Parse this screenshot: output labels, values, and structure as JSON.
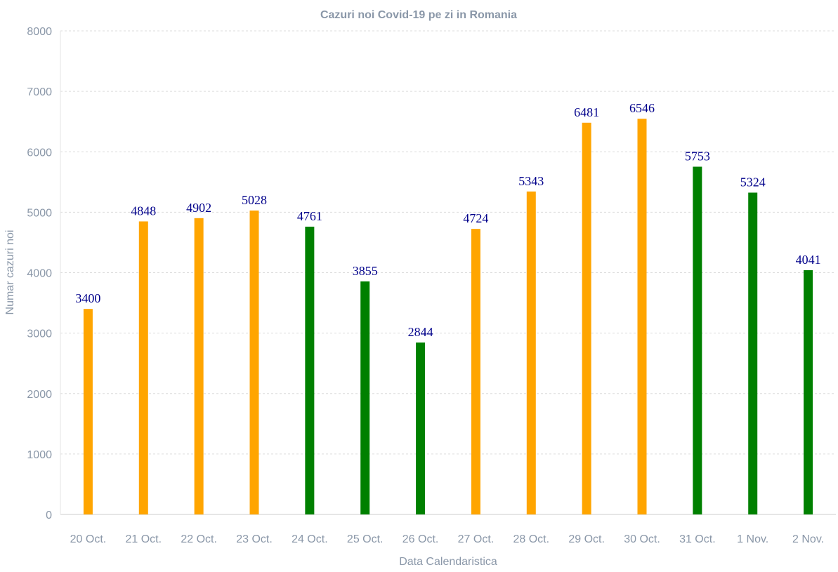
{
  "chart_data": {
    "type": "bar",
    "title": "Cazuri noi Covid-19 pe zi in Romania",
    "xlabel": "Data Calendaristica",
    "ylabel": "Numar cazuri noi",
    "ylim": [
      0,
      8000
    ],
    "yticks": [
      "0",
      "1000",
      "2000",
      "3000",
      "4000",
      "5000",
      "6000",
      "7000",
      "8000"
    ],
    "grid": true,
    "legend": "none",
    "categories": [
      "20 Oct.",
      "21 Oct.",
      "22 Oct.",
      "23 Oct.",
      "24 Oct.",
      "25 Oct.",
      "26 Oct.",
      "27 Oct.",
      "28 Oct.",
      "29 Oct.",
      "30 Oct.",
      "31 Oct.",
      "1 Nov.",
      "2 Nov."
    ],
    "values": [
      3400,
      4848,
      4902,
      5028,
      4761,
      3855,
      2844,
      4724,
      5343,
      6481,
      6546,
      5753,
      5324,
      4041
    ],
    "bar_colors": [
      "#ffa500",
      "#ffa500",
      "#ffa500",
      "#ffa500",
      "#008000",
      "#008000",
      "#008000",
      "#ffa500",
      "#ffa500",
      "#ffa500",
      "#ffa500",
      "#008000",
      "#008000",
      "#008000"
    ],
    "label_color": "#00008b"
  }
}
